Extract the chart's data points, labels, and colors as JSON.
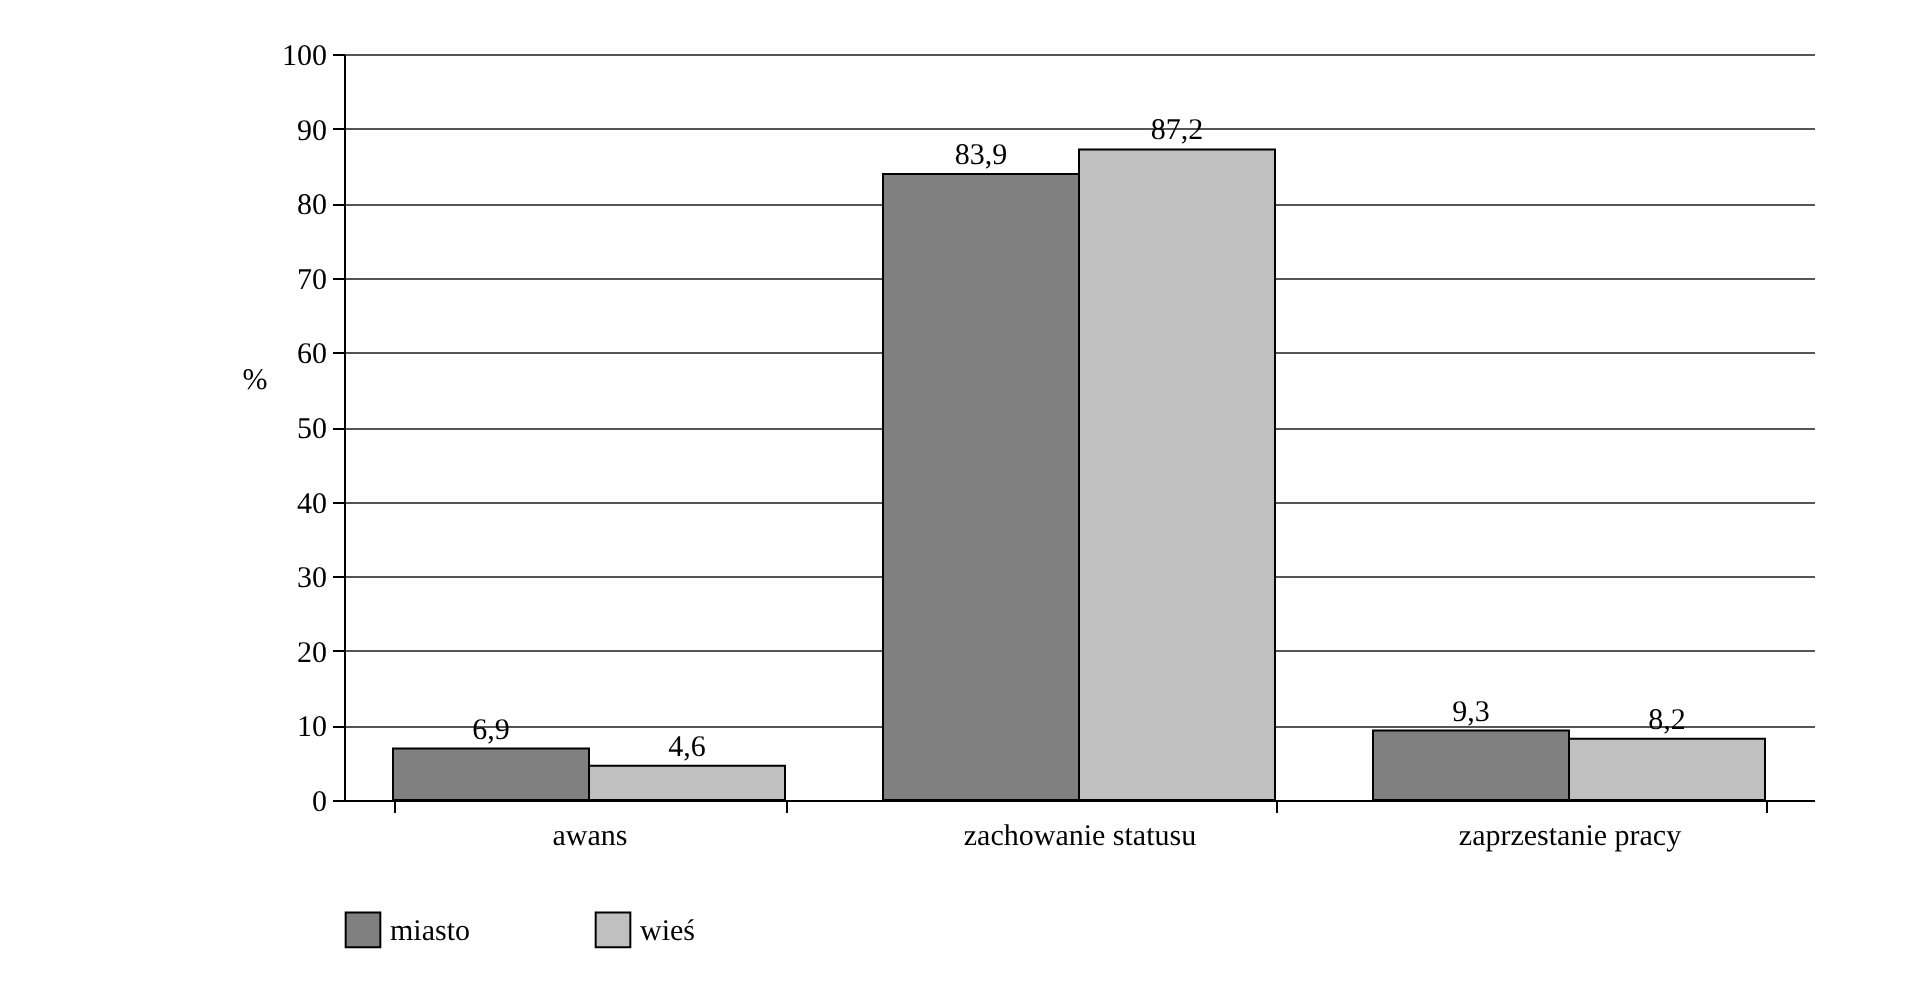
{
  "chart_data": {
    "type": "bar",
    "ylabel": "%",
    "categories": [
      "awans",
      "zachowanie statusu",
      "zaprzestanie pracy"
    ],
    "series": [
      {
        "name": "miasto",
        "color": "#808080",
        "values": [
          6.9,
          83.9,
          9.3
        ],
        "value_labels": [
          "6,9",
          "83,9",
          "9,3"
        ]
      },
      {
        "name": "wieś",
        "color": "#c0c0c0",
        "values": [
          4.6,
          87.2,
          8.2
        ],
        "value_labels": [
          "4,6",
          "87,2",
          "8,2"
        ]
      }
    ],
    "ylim": [
      0,
      100
    ],
    "yticks": [
      0,
      10,
      20,
      30,
      40,
      50,
      60,
      70,
      80,
      90,
      100
    ],
    "grid": "y",
    "legend": "bottom"
  }
}
